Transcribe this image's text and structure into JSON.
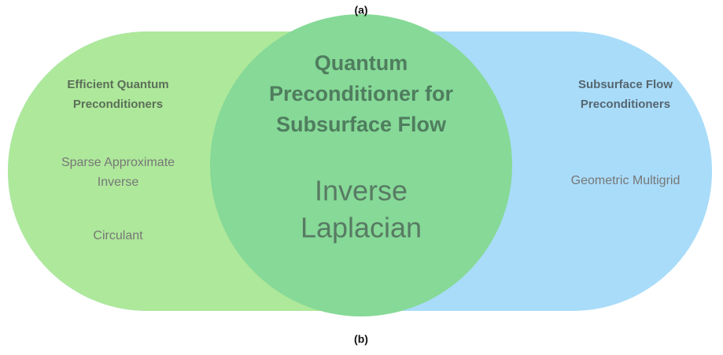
{
  "top_label": "(a)",
  "bottom_label": "(b)",
  "left": {
    "title": [
      "Efficient Quantum",
      "Preconditioners"
    ],
    "items": [
      [
        "Sparse Approximate",
        "Inverse"
      ],
      [
        "Circulant"
      ]
    ]
  },
  "center": {
    "title": [
      "Quantum",
      "Preconditioner for",
      "Subsurface Flow"
    ],
    "items": [
      [
        "Inverse",
        "Laplacian"
      ]
    ]
  },
  "right": {
    "title": [
      "Subsurface Flow",
      "Preconditioners"
    ],
    "items": [
      [
        "Geometric Multigrid"
      ]
    ]
  }
}
